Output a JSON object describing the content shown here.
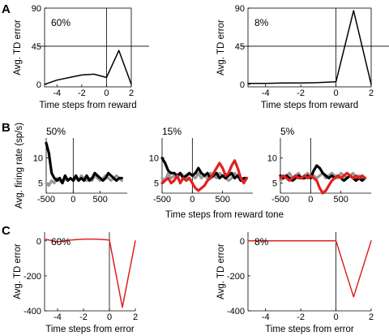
{
  "panels": [
    {
      "letter": "A",
      "caption": ""
    },
    {
      "letter": "B",
      "caption": ""
    },
    {
      "letter": "C",
      "caption": ""
    }
  ],
  "chart_data": [
    {
      "id": "A1",
      "panel": "A",
      "type": "line",
      "title": "60%",
      "xlabel": "Time steps from reward",
      "ylabel": "Avg. TD error",
      "xlim": [
        -5,
        2
      ],
      "ylim": [
        -3,
        90
      ],
      "xticks": [
        -4,
        -2,
        0,
        2
      ],
      "xtick_labels": [
        "-4",
        "-2",
        "0",
        "2"
      ],
      "yticks": [
        0,
        45,
        90
      ],
      "ytick_labels": [
        "0",
        "45",
        "90"
      ],
      "reference_lines": {
        "x": 0,
        "y": 45
      },
      "series": [
        {
          "color": "#000000",
          "x": [
            -5,
            -4,
            -3,
            -2,
            -1,
            0,
            1,
            2
          ],
          "y": [
            0,
            5,
            8,
            11,
            12,
            8,
            40,
            0
          ]
        }
      ]
    },
    {
      "id": "A2",
      "panel": "A",
      "type": "line",
      "title": "8%",
      "xlabel": "Time steps from reward",
      "ylabel": "Avg. TD error",
      "xlim": [
        -5,
        2
      ],
      "ylim": [
        -3,
        90
      ],
      "xticks": [
        -4,
        -2,
        0,
        2
      ],
      "xtick_labels": [
        "-4",
        "-2",
        "0",
        "2"
      ],
      "yticks": [
        0,
        45,
        90
      ],
      "ytick_labels": [
        "0",
        "45",
        "90"
      ],
      "reference_lines": {
        "x": 0,
        "y": 45
      },
      "series": [
        {
          "color": "#000000",
          "x": [
            -5,
            -4,
            -3,
            -2,
            -1,
            0,
            1,
            2
          ],
          "y": [
            1,
            1,
            1.5,
            1.5,
            2,
            3,
            87,
            0
          ]
        }
      ]
    },
    {
      "id": "B1",
      "panel": "B",
      "type": "line",
      "title": "50%",
      "ylabel": "Avg. firing rate (sp/s)",
      "xlim": [
        -500,
        1000
      ],
      "ylim": [
        3,
        14
      ],
      "xticks": [
        -500,
        0,
        500
      ],
      "xtick_labels": [
        "-500",
        "0",
        "500"
      ],
      "yticks": [
        5,
        10
      ],
      "ytick_labels": [
        "5",
        "10"
      ],
      "reference_lines": {
        "x": 0
      },
      "series": [
        {
          "color": "#999999",
          "x": [
            -500,
            -450,
            -400,
            -350,
            -300,
            -250,
            -200,
            -150,
            -100,
            -50,
            0,
            50,
            100,
            150,
            200,
            250,
            300,
            350,
            400,
            450,
            500,
            550,
            600,
            650,
            700,
            750,
            800,
            850,
            900
          ],
          "y": [
            5,
            4.5,
            5.5,
            5,
            6,
            5.5,
            5,
            6,
            5.5,
            6,
            5.5,
            6,
            5.5,
            6.5,
            6,
            5.5,
            6,
            5.5,
            6.5,
            6,
            5.5,
            6,
            6.5,
            6,
            5.5,
            6,
            6.5,
            6,
            5.5
          ]
        },
        {
          "color": "#000000",
          "x": [
            -500,
            -450,
            -400,
            -350,
            -300,
            -250,
            -200,
            -150,
            -100,
            -50,
            0,
            50,
            100,
            150,
            200,
            250,
            300,
            350,
            400,
            450,
            500,
            550,
            600,
            650,
            700,
            750,
            800,
            850,
            900
          ],
          "y": [
            13,
            11,
            7,
            6,
            5.5,
            6,
            5,
            6.5,
            5.5,
            6,
            5.5,
            6.5,
            5.5,
            6,
            5.5,
            6.5,
            5.5,
            6,
            7,
            6.5,
            6,
            5.5,
            6,
            7,
            6.5,
            6,
            5.5,
            6,
            6
          ]
        }
      ]
    },
    {
      "id": "B2",
      "panel": "B",
      "type": "line",
      "title": "15%",
      "xlim": [
        -500,
        1000
      ],
      "ylim": [
        3,
        14
      ],
      "xticks": [
        -500,
        0,
        500
      ],
      "xtick_labels": [
        "-500",
        "0",
        "500"
      ],
      "yticks": [
        5,
        10
      ],
      "ytick_labels": [
        "5",
        "10"
      ],
      "reference_lines": {
        "x": 0
      },
      "series": [
        {
          "color": "#999999",
          "x": [
            -500,
            -450,
            -400,
            -350,
            -300,
            -250,
            -200,
            -150,
            -100,
            -50,
            0,
            50,
            100,
            150,
            200,
            250,
            300,
            350,
            400,
            450,
            500,
            550,
            600,
            650,
            700,
            750,
            800,
            850,
            900
          ],
          "y": [
            6,
            5.5,
            7,
            6,
            6.5,
            6,
            7,
            6.5,
            6,
            7,
            6.5,
            6,
            7,
            6,
            6.5,
            6,
            7,
            6.5,
            6,
            7,
            6.5,
            6,
            5.5,
            6,
            7,
            6.5,
            6,
            5.5,
            6
          ]
        },
        {
          "color": "#000000",
          "x": [
            -500,
            -450,
            -400,
            -350,
            -300,
            -250,
            -200,
            -150,
            -100,
            -50,
            0,
            50,
            100,
            150,
            200,
            250,
            300,
            350,
            400,
            450,
            500,
            550,
            600,
            650,
            700,
            750,
            800,
            850,
            900
          ],
          "y": [
            10,
            9,
            7.5,
            7,
            7,
            6.5,
            7,
            6,
            6.5,
            7,
            6.5,
            7,
            8,
            7,
            6.5,
            7,
            6,
            6.5,
            7,
            6,
            6.5,
            6,
            6.5,
            7,
            6,
            6.5,
            5.5,
            6,
            6
          ]
        },
        {
          "color": "#e02020",
          "x": [
            -500,
            -450,
            -400,
            -350,
            -300,
            -250,
            -200,
            -150,
            -100,
            -50,
            0,
            50,
            100,
            150,
            200,
            250,
            300,
            350,
            400,
            450,
            500,
            550,
            600,
            650,
            700,
            750,
            800,
            850,
            900
          ],
          "y": [
            5,
            5.5,
            6,
            5,
            5.5,
            6.5,
            5,
            6,
            5.5,
            6,
            5,
            4,
            3.5,
            4,
            4.5,
            5.5,
            6,
            7,
            8,
            9,
            8,
            6.5,
            7,
            8.5,
            9.5,
            8,
            6,
            5,
            6
          ]
        }
      ]
    },
    {
      "id": "B3",
      "panel": "B",
      "type": "line",
      "title": "5%",
      "xlim": [
        -500,
        1000
      ],
      "ylim": [
        3,
        14
      ],
      "xticks": [
        -500,
        0,
        500
      ],
      "xtick_labels": [
        "-500",
        "0",
        "500"
      ],
      "yticks": [
        5,
        10
      ],
      "ytick_labels": [
        "5",
        "10"
      ],
      "reference_lines": {
        "x": 0
      },
      "series": [
        {
          "color": "#999999",
          "x": [
            -500,
            -450,
            -400,
            -350,
            -300,
            -250,
            -200,
            -150,
            -100,
            -50,
            0,
            50,
            100,
            150,
            200,
            250,
            300,
            350,
            400,
            450,
            500,
            550,
            600,
            650,
            700,
            750,
            800,
            850,
            900
          ],
          "y": [
            5.5,
            6,
            6.5,
            7,
            6,
            6.5,
            7,
            6,
            6.5,
            7,
            6,
            6.5,
            6,
            6.5,
            7,
            6,
            6.5,
            7,
            6.5,
            6,
            7,
            6.5,
            6,
            6.5,
            7,
            6,
            6.5,
            6,
            6
          ]
        },
        {
          "color": "#000000",
          "x": [
            -500,
            -450,
            -400,
            -350,
            -300,
            -250,
            -200,
            -150,
            -100,
            -50,
            0,
            50,
            100,
            150,
            200,
            250,
            300,
            350,
            400,
            450,
            500,
            550,
            600,
            650,
            700,
            750,
            800,
            850,
            900
          ],
          "y": [
            6.5,
            6,
            6.5,
            6,
            5.5,
            6,
            6.5,
            6,
            6,
            6.5,
            6,
            7.5,
            8.5,
            8,
            7,
            6.5,
            6,
            6.5,
            6,
            6.5,
            6,
            5.5,
            6,
            6.5,
            6,
            5.5,
            6,
            5.5,
            6
          ]
        },
        {
          "color": "#e02020",
          "x": [
            -500,
            -450,
            -400,
            -350,
            -300,
            -250,
            -200,
            -150,
            -100,
            -50,
            0,
            50,
            100,
            150,
            200,
            250,
            300,
            350,
            400,
            450,
            500,
            550,
            600,
            650,
            700,
            750,
            800,
            850,
            900
          ],
          "y": [
            6,
            6.5,
            6,
            5.5,
            6,
            6.5,
            6,
            6,
            6.5,
            6,
            6.5,
            6,
            5.5,
            4,
            3,
            3.5,
            4.5,
            5.5,
            6,
            6.5,
            6,
            6.5,
            7,
            6.5,
            6,
            6.5,
            6,
            6.5,
            6
          ]
        }
      ]
    },
    {
      "id": "C1",
      "panel": "C",
      "type": "line",
      "title": "60%",
      "xlabel": "Time steps from error",
      "ylabel": "Avg. TD error",
      "xlim": [
        -5,
        2
      ],
      "ylim": [
        -400,
        50
      ],
      "xticks": [
        -4,
        -2,
        0,
        2
      ],
      "xtick_labels": [
        "-4",
        "-2",
        "0",
        "2"
      ],
      "yticks": [
        -400,
        -200,
        0
      ],
      "ytick_labels": [
        "-400",
        "-200",
        "0"
      ],
      "reference_lines": {
        "x": 0
      },
      "series": [
        {
          "color": "#e02020",
          "x": [
            -5,
            -4,
            -3,
            -2,
            -1,
            0,
            1,
            2
          ],
          "y": [
            10,
            -5,
            5,
            10,
            10,
            5,
            -380,
            0
          ]
        }
      ]
    },
    {
      "id": "C2",
      "panel": "C",
      "type": "line",
      "title": "8%",
      "xlabel": "Time steps from error",
      "ylabel": "Avg. TD error",
      "xlim": [
        -5,
        2
      ],
      "ylim": [
        -400,
        50
      ],
      "xticks": [
        -4,
        -2,
        0,
        2
      ],
      "xtick_labels": [
        "-4",
        "-2",
        "0",
        "2"
      ],
      "yticks": [
        -400,
        -200,
        0
      ],
      "ytick_labels": [
        "-400",
        "-200",
        "0"
      ],
      "reference_lines": {
        "x": 0
      },
      "series": [
        {
          "color": "#e02020",
          "x": [
            -5,
            -4,
            -3,
            -2,
            -1,
            0,
            1,
            2
          ],
          "y": [
            0,
            0,
            0,
            0,
            0,
            0,
            -320,
            0
          ]
        }
      ]
    }
  ],
  "shared_labels": {
    "b_xlabel": "Time steps from reward tone"
  }
}
